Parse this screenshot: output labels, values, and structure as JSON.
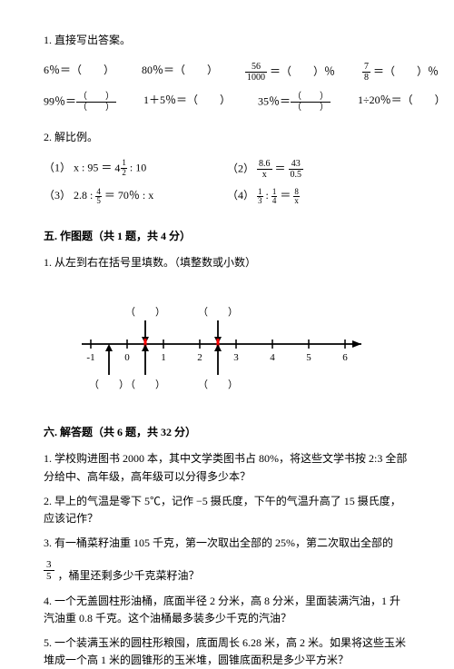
{
  "q1": {
    "title": "1. 直接写出答案。",
    "r1": {
      "a": "6％＝（　　）",
      "b": "80％＝（　　）",
      "c_pre": "",
      "c_num": "56",
      "c_den": "1000",
      "c_post": " ＝（　　）％",
      "d_num": "7",
      "d_den": "8",
      "d_post": " ＝（　　）％"
    },
    "r2": {
      "a": "99％＝",
      "a_num": "（　　）",
      "a_den": "（　　）",
      "b": "1＋5％＝（　　）",
      "c": "35％＝",
      "c_num": "（　　）",
      "c_den": "（　　）",
      "d": "1÷20％＝（　　）"
    }
  },
  "q2": {
    "title": "2. 解比例。",
    "p1_label": "（1）",
    "p1_text_a": "x : 95 ＝ ",
    "p1_whole": "4",
    "p1_num": "1",
    "p1_den": "2",
    "p1_text_b": " : 10",
    "p2_label": "（2）",
    "p2_a_num": "8.6",
    "p2_a_den": "x",
    "p2_b_num": "43",
    "p2_b_den": "0.5",
    "p3_label": "（3）",
    "p3_text_a": "2.8 : ",
    "p3_num": "4",
    "p3_den": "5",
    "p3_text_b": " ＝ 70％ : x",
    "p4_label": "（4）",
    "p4_a_num": "1",
    "p4_a_den": "3",
    "p4_b_num": "1",
    "p4_b_den": "4",
    "p4_c_num": "8",
    "p4_c_den": "x"
  },
  "s5": {
    "title": "五. 作图题（共 1 题，共 4 分）",
    "q": "1. 从左到右在括号里填数。（填整数或小数）",
    "ticks": [
      "-1",
      "0",
      "1",
      "2",
      "3",
      "4",
      "5",
      "6"
    ],
    "blank": "（　　）",
    "upper_positions": [
      0.5,
      2.5
    ],
    "lower_positions": [
      -0.5,
      0.5,
      2.5
    ],
    "colors": {
      "arrow_red": "#ff0000",
      "arrow_black": "#000000",
      "line": "#000000",
      "bg": "#ffffff"
    },
    "font_size": 11
  },
  "s6": {
    "title": "六. 解答题（共 6 题，共 32 分）",
    "q1": "1. 学校购进图书 2000 本，其中文学类图书占 80%，将这些文学书按 2:3 全部分给中、高年级，高年级可以分得多少本？",
    "q2": "2. 早上的气温是零下 5℃，记作 −5 摄氏度，下午的气温升高了 15 摄氏度，应该记作？",
    "q3a": "3. 有一桶菜籽油重 105 千克，第一次取出全部的 25%，第二次取出全部的",
    "q3_num": "3",
    "q3_den": "5",
    "q3b": "，桶里还剩多少千克菜籽油？",
    "q4": "4. 一个无盖圆柱形油桶，底面半径 2 分米，高 8 分米，里面装满汽油，1 升汽油重 0.8 千克。这个油桶最多装多少千克的汽油？",
    "q5": "5. 一个装满玉米的圆柱形粮囤，底面周长 6.28 米，高 2 米。如果将这些玉米堆成一个高 1 米的圆锥形的玉米堆，圆锥底面积是多少平方米？"
  }
}
